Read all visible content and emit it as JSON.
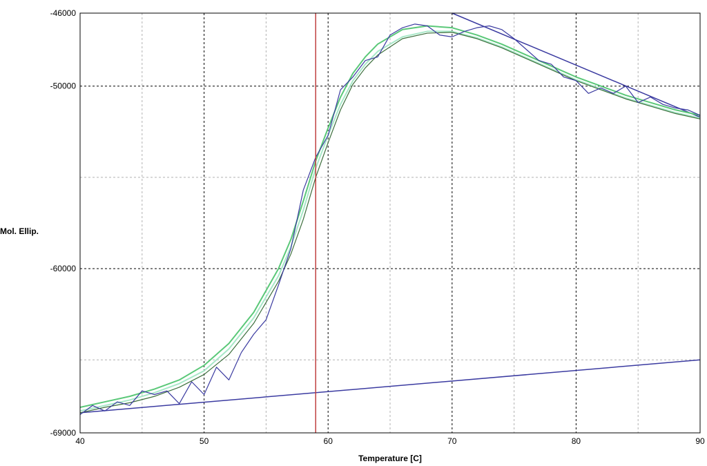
{
  "chart_data": {
    "type": "line",
    "title": "",
    "xlabel": "Temperature [C]",
    "ylabel": "Mol. Ellip.",
    "xlim": [
      40,
      90
    ],
    "ylim": [
      -69000,
      -46000
    ],
    "x_ticks": [
      40,
      50,
      60,
      70,
      80,
      90
    ],
    "y_ticks": [
      -46000,
      -50000,
      -60000,
      -69000
    ],
    "grid": true,
    "legend": "none",
    "colors": {
      "measured": "#3a3aa0",
      "fit_outer": "#5ac878",
      "fit_inner": "#a8e8c8",
      "fit_mid": "#3c6e3c",
      "midpoint": "#c04040",
      "baseline": "#3a3aa0"
    },
    "series": [
      {
        "key": "measured",
        "x": [
          40,
          41,
          42,
          43,
          44,
          45,
          46,
          47,
          48,
          49,
          50,
          51,
          52,
          53,
          54,
          55,
          56,
          57,
          58,
          59,
          60,
          61,
          62,
          63,
          64,
          65,
          66,
          67,
          68,
          69,
          70,
          71,
          72,
          73,
          74,
          75,
          76,
          77,
          78,
          79,
          80,
          81,
          82,
          83,
          84,
          85,
          86,
          87,
          88,
          89,
          90
        ],
        "y": [
          -68000,
          -67500,
          -67800,
          -67300,
          -67500,
          -66700,
          -66900,
          -66700,
          -67400,
          -66200,
          -66900,
          -65400,
          -66100,
          -64600,
          -63600,
          -62800,
          -60900,
          -58900,
          -55700,
          -53900,
          -52700,
          -50200,
          -49500,
          -48600,
          -48400,
          -47200,
          -46800,
          -46600,
          -46700,
          -47200,
          -47300,
          -47000,
          -46800,
          -46700,
          -46900,
          -47400,
          -48000,
          -48600,
          -48800,
          -49500,
          -49700,
          -50400,
          -50100,
          -50400,
          -50000,
          -50900,
          -50600,
          -51000,
          -51200,
          -51300,
          -51600
        ]
      },
      {
        "key": "fit_outer",
        "x": [
          40,
          42,
          44,
          46,
          48,
          50,
          52,
          54,
          56,
          57,
          58,
          59,
          60,
          61,
          62,
          63,
          64,
          66,
          68,
          70,
          72,
          74,
          76,
          78,
          80,
          82,
          84,
          86,
          88,
          90
        ],
        "y": [
          -67600,
          -67300,
          -67000,
          -66600,
          -66100,
          -65300,
          -64100,
          -62400,
          -60000,
          -58400,
          -56300,
          -54100,
          -52300,
          -50600,
          -49300,
          -48400,
          -47700,
          -46900,
          -46700,
          -46800,
          -47200,
          -47700,
          -48300,
          -48900,
          -49500,
          -50000,
          -50500,
          -50900,
          -51300,
          -51600
        ]
      },
      {
        "key": "fit_inner",
        "x": [
          40,
          42,
          44,
          46,
          48,
          50,
          52,
          54,
          56,
          57,
          58,
          59,
          60,
          61,
          62,
          63,
          64,
          66,
          68,
          70,
          72,
          74,
          76,
          78,
          80,
          82,
          84,
          86,
          88,
          90
        ],
        "y": [
          -67800,
          -67500,
          -67200,
          -66800,
          -66300,
          -65600,
          -64400,
          -62700,
          -60400,
          -58800,
          -56800,
          -54500,
          -52700,
          -51000,
          -49700,
          -48800,
          -48100,
          -47300,
          -47000,
          -47000,
          -47350,
          -47850,
          -48450,
          -49050,
          -49650,
          -50150,
          -50650,
          -51050,
          -51450,
          -51750
        ]
      },
      {
        "key": "fit_mid",
        "x": [
          40,
          42,
          44,
          46,
          48,
          50,
          52,
          54,
          56,
          57,
          58,
          59,
          60,
          61,
          62,
          63,
          64,
          66,
          68,
          70,
          72,
          74,
          76,
          78,
          80,
          82,
          84,
          86,
          88,
          90
        ],
        "y": [
          -67900,
          -67600,
          -67350,
          -67000,
          -66500,
          -65800,
          -64700,
          -63000,
          -60700,
          -59200,
          -57300,
          -55000,
          -53100,
          -51300,
          -49900,
          -49000,
          -48300,
          -47400,
          -47100,
          -47050,
          -47400,
          -47900,
          -48500,
          -49100,
          -49700,
          -50200,
          -50700,
          -51100,
          -51500,
          -51800
        ]
      },
      {
        "key": "pre_baseline",
        "x": [
          40,
          90
        ],
        "y": [
          -67900,
          -65000
        ]
      },
      {
        "key": "post_baseline",
        "x": [
          70,
          90
        ],
        "y": [
          -46000,
          -51700
        ]
      }
    ],
    "vertical_line_x": 59
  }
}
